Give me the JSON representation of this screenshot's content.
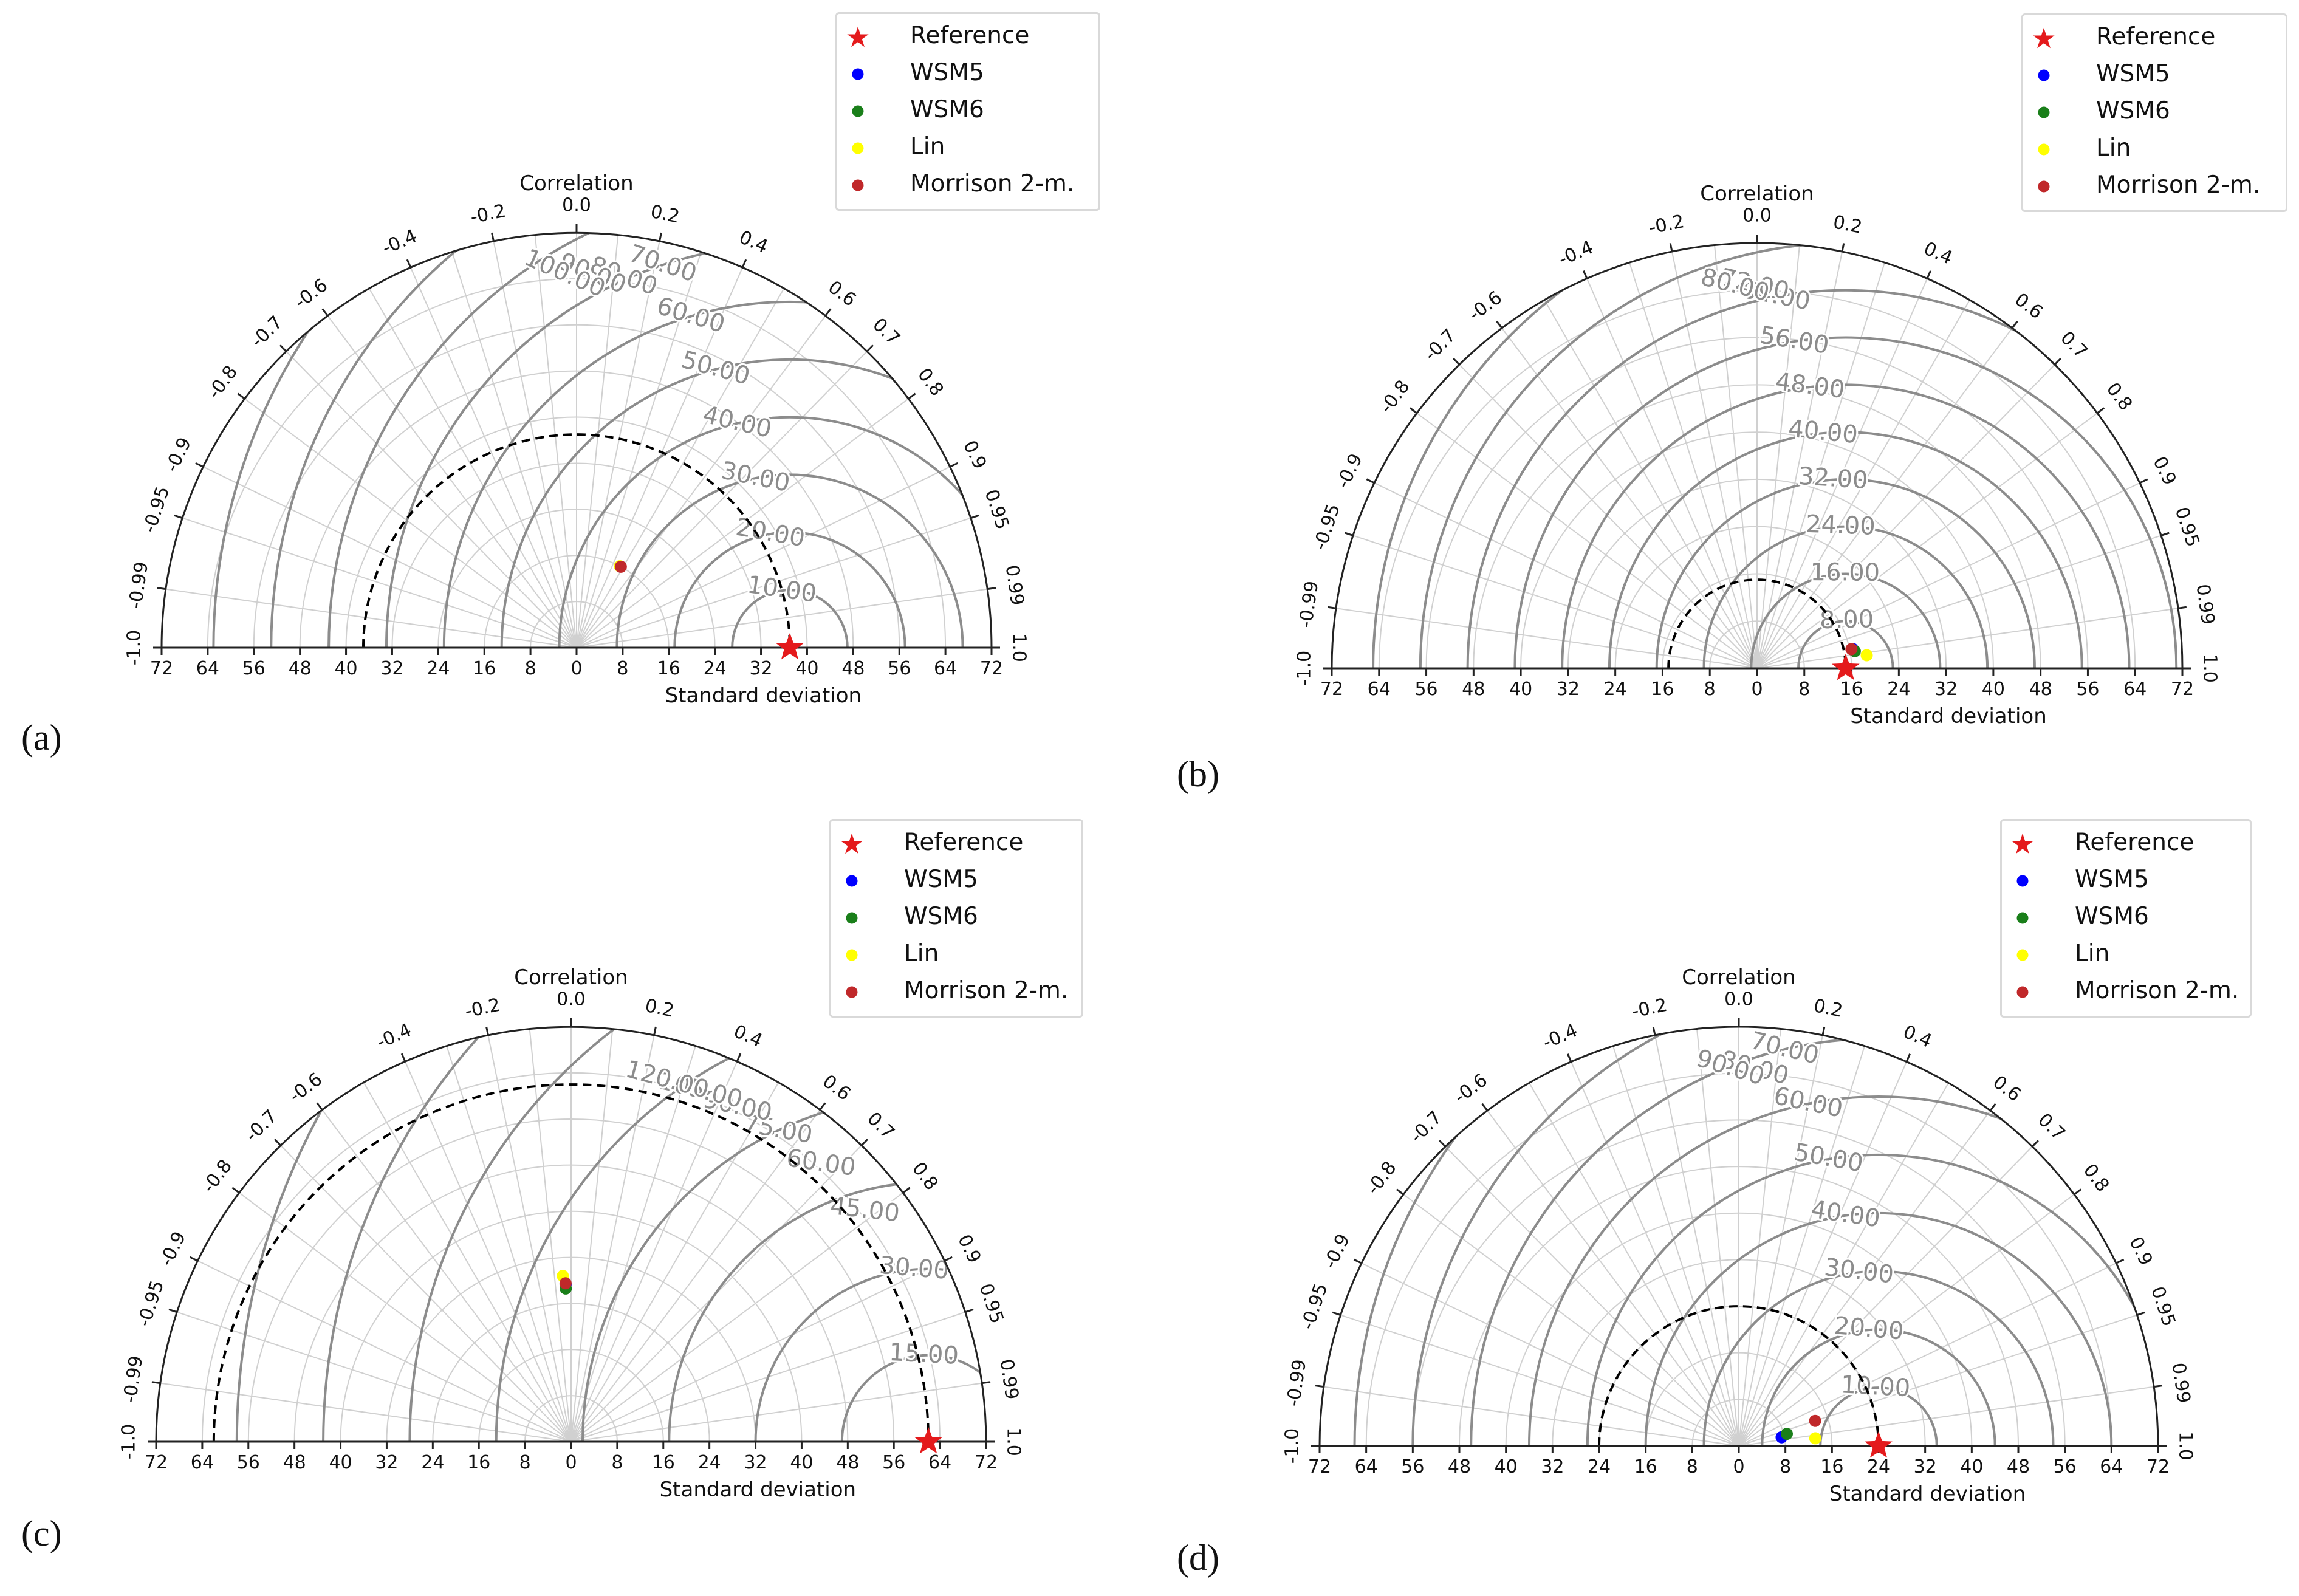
{
  "figure": {
    "common": {
      "title": "Correlation",
      "xlabel": "Standard deviation",
      "x_ticks": [
        "72",
        "64",
        "56",
        "48",
        "40",
        "32",
        "24",
        "16",
        "8",
        "0",
        "8",
        "16",
        "24",
        "32",
        "40",
        "48",
        "56",
        "64",
        "72"
      ],
      "corr_ticks": [
        {
          "label": "1.0",
          "r": 1.0
        },
        {
          "label": "0.99",
          "r": 0.99
        },
        {
          "label": "0.95",
          "r": 0.95
        },
        {
          "label": "0.9",
          "r": 0.9
        },
        {
          "label": "0.8",
          "r": 0.8
        },
        {
          "label": "0.7",
          "r": 0.7
        },
        {
          "label": "0.6",
          "r": 0.6
        },
        {
          "label": "0.4",
          "r": 0.4
        },
        {
          "label": "0.2",
          "r": 0.2
        },
        {
          "label": "0.0",
          "r": 0.0
        },
        {
          "label": "-0.2",
          "r": -0.2
        },
        {
          "label": "-0.4",
          "r": -0.4
        },
        {
          "label": "-0.6",
          "r": -0.6
        },
        {
          "label": "-0.7",
          "r": -0.7
        },
        {
          "label": "-0.8",
          "r": -0.8
        },
        {
          "label": "-0.9",
          "r": -0.9
        },
        {
          "label": "-0.95",
          "r": -0.95
        },
        {
          "label": "-0.99",
          "r": -0.99
        },
        {
          "label": "-1.0",
          "r": -1.0
        }
      ],
      "colors": {
        "reference": "#e41a1c",
        "wsm5": "#0000ff",
        "wsm6": "#1a7f1a",
        "lin": "#ffff00",
        "morrison": "#c0282a",
        "rms_contour": "#8c8c8c",
        "grid": "#d0d0d0",
        "axis": "#222222"
      }
    },
    "legend": {
      "entries": [
        {
          "key": "reference",
          "label": "Reference",
          "marker": "★"
        },
        {
          "key": "wsm5",
          "label": "WSM5",
          "marker": "●"
        },
        {
          "key": "wsm6",
          "label": "WSM6",
          "marker": "●"
        },
        {
          "key": "lin",
          "label": "Lin",
          "marker": "●"
        },
        {
          "key": "morrison",
          "label": "Morrison 2-m.",
          "marker": "●"
        }
      ]
    },
    "panels": [
      {
        "id": "a",
        "label": "(a)"
      },
      {
        "id": "b",
        "label": "(b)"
      },
      {
        "id": "c",
        "label": "(c)"
      },
      {
        "id": "d",
        "label": "(d)"
      }
    ]
  },
  "chart_data": [
    {
      "type": "scatter",
      "subtype": "taylor-diagram",
      "panel": "(a)",
      "title": "Correlation",
      "xlabel": "Standard deviation",
      "std_range": [
        0,
        72
      ],
      "reference": {
        "label": "Reference",
        "std": 37
      },
      "rms_contours": [
        "10.00",
        "20.00",
        "30.00",
        "40.00",
        "50.00",
        "60.00",
        "70.00",
        "80.00",
        "90.00",
        "100.00"
      ],
      "series": [
        {
          "name": "Lin",
          "std": 16,
          "corr": 0.47
        },
        {
          "name": "Morrison 2-m.",
          "std": 16,
          "corr": 0.48
        }
      ]
    },
    {
      "type": "scatter",
      "subtype": "taylor-diagram",
      "panel": "(b)",
      "title": "Correlation",
      "xlabel": "Standard deviation",
      "std_range": [
        0,
        72
      ],
      "reference": {
        "label": "Reference",
        "std": 15
      },
      "rms_contours": [
        "8.00",
        "16.00",
        "24.00",
        "32.00",
        "40.00",
        "48.00",
        "56.00",
        "64.00",
        "72.00",
        "80.00"
      ],
      "series": [
        {
          "name": "WSM5",
          "std": 16.5,
          "corr": 0.98
        },
        {
          "name": "WSM6",
          "std": 16.8,
          "corr": 0.985
        },
        {
          "name": "Lin",
          "std": 18.7,
          "corr": 0.993
        },
        {
          "name": "Morrison 2-m.",
          "std": 16.3,
          "corr": 0.98
        }
      ]
    },
    {
      "type": "scatter",
      "subtype": "taylor-diagram",
      "panel": "(c)",
      "title": "Correlation",
      "xlabel": "Standard deviation",
      "std_range": [
        0,
        72
      ],
      "reference": {
        "label": "Reference",
        "std": 62
      },
      "rms_contours": [
        "15.00",
        "30.00",
        "45.00",
        "60.00",
        "75.00",
        "90.00",
        "105.00",
        "120.00"
      ],
      "series": [
        {
          "name": "WSM5",
          "std": 27.3,
          "corr": -0.035
        },
        {
          "name": "WSM6",
          "std": 26.6,
          "corr": -0.035
        },
        {
          "name": "Lin",
          "std": 28.8,
          "corr": -0.05
        },
        {
          "name": "Morrison 2-m.",
          "std": 27.5,
          "corr": -0.035
        }
      ]
    },
    {
      "type": "scatter",
      "subtype": "taylor-diagram",
      "panel": "(d)",
      "title": "Correlation",
      "xlabel": "Standard deviation",
      "std_range": [
        0,
        72
      ],
      "reference": {
        "label": "Reference",
        "std": 24
      },
      "rms_contours": [
        "10.00",
        "20.00",
        "30.00",
        "40.00",
        "50.00",
        "60.00",
        "70.00",
        "80.00",
        "90.00"
      ],
      "series": [
        {
          "name": "WSM5",
          "std": 7.5,
          "corr": 0.98
        },
        {
          "name": "WSM6",
          "std": 8.5,
          "corr": 0.97
        },
        {
          "name": "Lin",
          "std": 13.2,
          "corr": 0.995
        },
        {
          "name": "Morrison 2-m.",
          "std": 13.8,
          "corr": 0.95
        }
      ]
    }
  ]
}
